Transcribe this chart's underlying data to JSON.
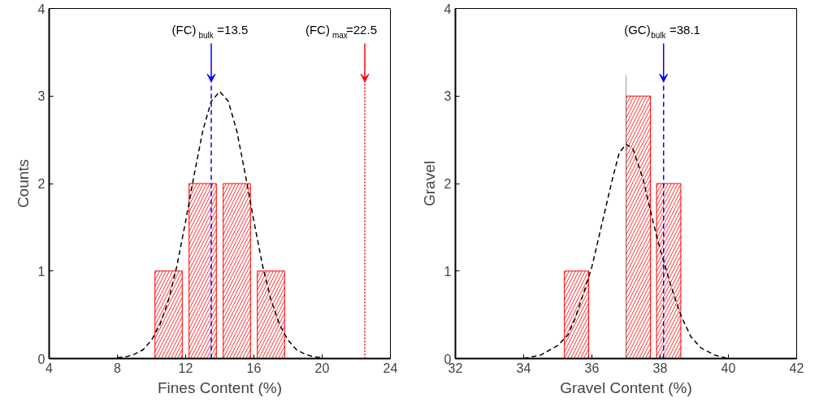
{
  "chart_data": [
    {
      "type": "bar",
      "xlabel": "Fines Content (%)",
      "ylabel": "Counts",
      "xlim": [
        4,
        24
      ],
      "xticks": [
        4,
        8,
        12,
        16,
        20,
        24
      ],
      "ylim": [
        0,
        4
      ],
      "yticks": [
        0,
        1,
        2,
        3,
        4
      ],
      "grid": false,
      "series": [
        {
          "color": "#ff0000",
          "x": [
            11,
            13,
            15,
            17
          ],
          "values": [
            1,
            2,
            2,
            1
          ]
        },
        {
          "type": "line",
          "color": "#000000",
          "line_style": "dashed",
          "x": [
            8,
            8.5,
            9,
            9.5,
            10,
            10.5,
            11,
            11.5,
            12,
            12.5,
            13,
            13.5,
            14,
            14.5,
            15,
            15.5,
            16,
            16.5,
            17,
            17.5,
            18,
            18.5,
            19,
            19.5,
            20
          ],
          "values": [
            0.01,
            0.02,
            0.05,
            0.1,
            0.21,
            0.39,
            0.67,
            1.07,
            1.57,
            2.1,
            2.6,
            2.94,
            3.05,
            2.94,
            2.6,
            2.1,
            1.57,
            1.07,
            0.67,
            0.39,
            0.21,
            0.1,
            0.05,
            0.02,
            0.01
          ]
        }
      ],
      "ref_lines": [
        {
          "axis": "x",
          "value": 13.5,
          "label": "(FC)$_{bulk}$=13.5",
          "color": "#0000ff",
          "line_style": "dashed"
        },
        {
          "axis": "x",
          "value": 22.5,
          "label": "(FC)$_{max}$=22.5",
          "color": "#ff0000",
          "line_style": "dotted"
        }
      ]
    },
    {
      "type": "bar",
      "xlabel": "Gravel Content (%)",
      "ylabel": "Gravel",
      "xlim": [
        32,
        42
      ],
      "xticks": [
        32,
        34,
        36,
        38,
        40,
        42
      ],
      "ylim": [
        0,
        4
      ],
      "yticks": [
        0,
        1,
        2,
        3,
        4
      ],
      "grid": false,
      "series": [
        {
          "color": "#ff0000",
          "x": [
            35.55,
            37.36,
            38.25
          ],
          "values": [
            1,
            3,
            2
          ]
        },
        {
          "type": "line",
          "color": "#000000",
          "line_style": "dashed",
          "x": [
            34,
            34.5,
            35,
            35.3,
            35.5,
            35.8,
            36,
            36.3,
            36.6,
            36.8,
            37,
            37.2,
            37.5,
            37.8,
            38,
            38.3,
            38.6,
            38.9,
            39.2,
            39.6,
            40
          ],
          "values": [
            0,
            0.04,
            0.15,
            0.27,
            0.45,
            0.8,
            1.05,
            1.55,
            2.05,
            2.35,
            2.45,
            2.4,
            2.05,
            1.55,
            1.25,
            0.85,
            0.5,
            0.25,
            0.12,
            0.04,
            0
          ]
        }
      ],
      "ref_lines": [
        {
          "axis": "x",
          "value": 37.0,
          "color": "#808080",
          "line_style": "solid"
        },
        {
          "axis": "x",
          "value": 38.1,
          "label": "(GC)$_{bulk}$=38.1",
          "color": "#0000ff",
          "line_style": "dashed"
        }
      ]
    }
  ]
}
